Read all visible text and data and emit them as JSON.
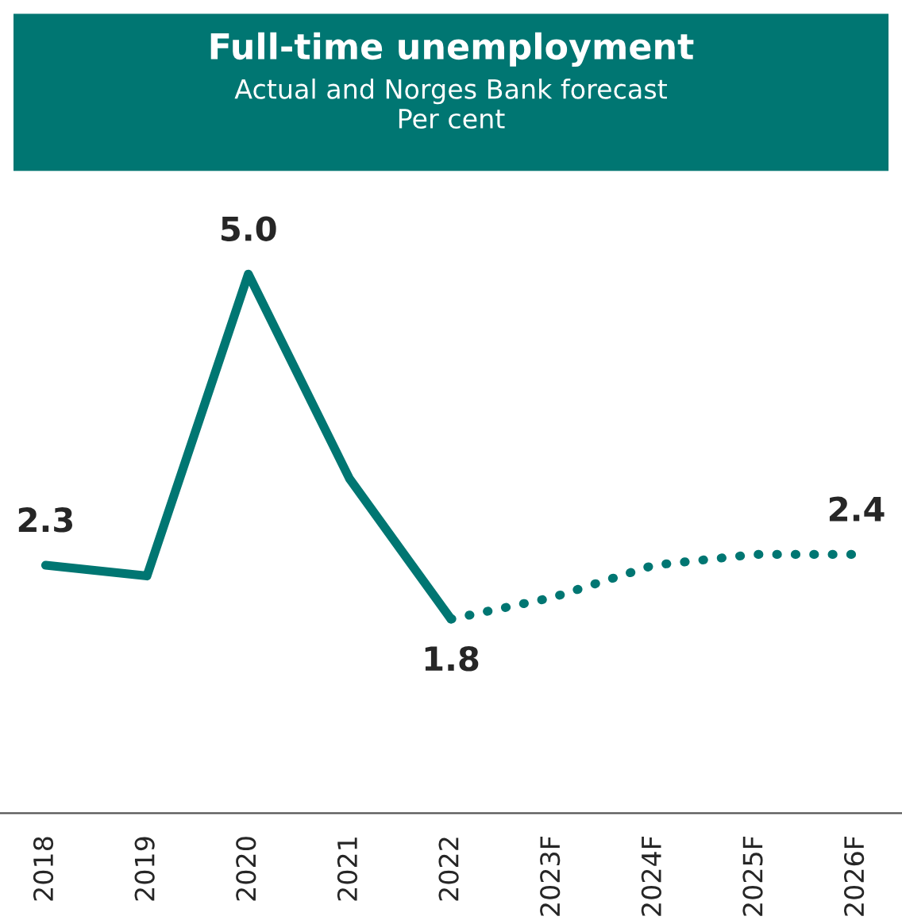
{
  "chart_data": {
    "type": "line",
    "title": "Full-time unemployment",
    "subtitle": "Actual and Norges Bank forecast\nPer cent",
    "categories": [
      "2018",
      "2019",
      "2020",
      "2021",
      "2022",
      "2023F",
      "2024F",
      "2025F",
      "2026F"
    ],
    "series": [
      {
        "color": "#007672",
        "line_style": "solid",
        "values": [
          2.3,
          2.2,
          5.0,
          3.1,
          1.8,
          null,
          null,
          null,
          null
        ],
        "value_labels": [
          "2.3",
          null,
          "5.0",
          null,
          "1.8",
          null,
          null,
          null,
          null
        ]
      },
      {
        "color": "#007672",
        "line_style": "dotted",
        "values": [
          null,
          null,
          null,
          null,
          1.8,
          2.0,
          2.3,
          2.4,
          2.4
        ],
        "value_labels": [
          null,
          null,
          null,
          null,
          null,
          null,
          null,
          null,
          "2.4"
        ]
      }
    ],
    "tick_labels": "x",
    "grid": false,
    "legend": false,
    "marker": "none"
  }
}
